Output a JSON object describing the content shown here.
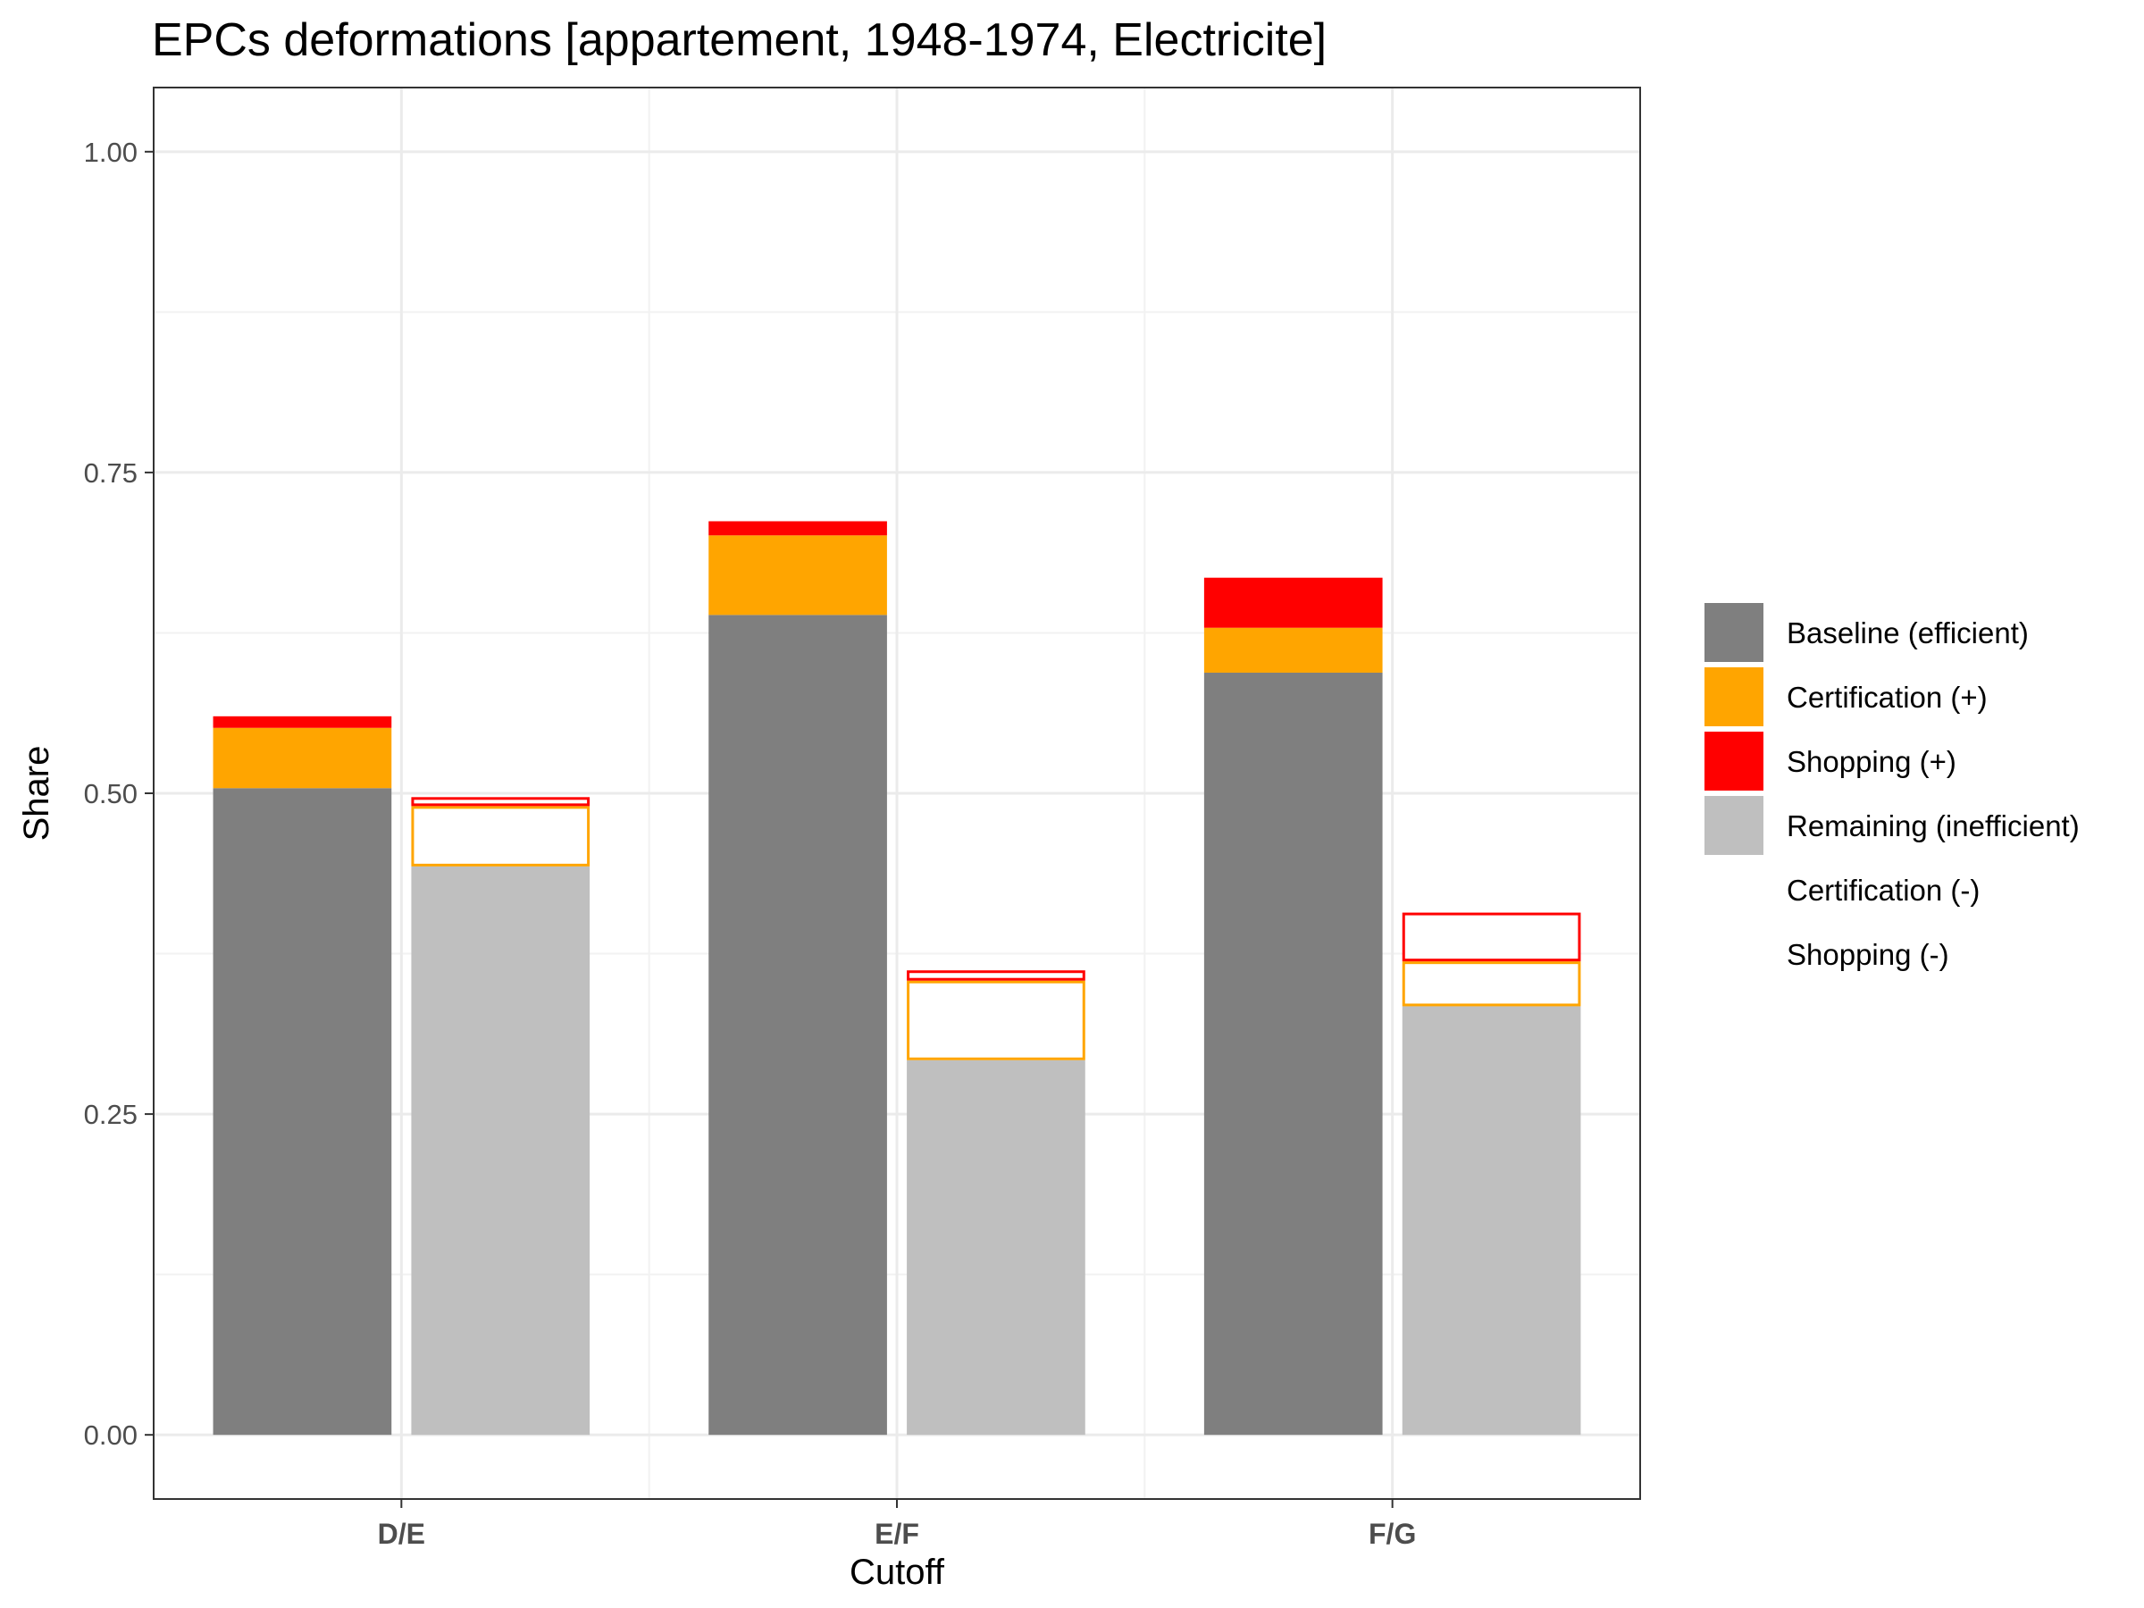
{
  "chart_data": {
    "type": "bar",
    "title": "EPCs deformations [appartement, 1948-1974, Electricite]",
    "xlabel": "Cutoff",
    "ylabel": "Share",
    "ylim": [
      -0.05,
      1.05
    ],
    "yticks": [
      0.0,
      0.25,
      0.5,
      0.75,
      1.0
    ],
    "ytick_labels": [
      "0.00",
      "0.25",
      "0.50",
      "0.75",
      "1.00"
    ],
    "grid": true,
    "legend_position": "right",
    "categories": [
      "D/E",
      "E/F",
      "F/G"
    ],
    "series": [
      {
        "name": "Baseline (efficient)",
        "bar": "left",
        "style": "filled",
        "color": "#7f7f7f",
        "values": [
          0.504,
          0.639,
          0.594
        ]
      },
      {
        "name": "Certification (+)",
        "bar": "left",
        "style": "filled",
        "color": "#ffa500",
        "values": [
          0.047,
          0.062,
          0.035
        ]
      },
      {
        "name": "Shopping (+)",
        "bar": "left",
        "style": "filled",
        "color": "#ff0000",
        "values": [
          0.009,
          0.011,
          0.039
        ]
      },
      {
        "name": "Remaining (inefficient)",
        "bar": "right",
        "style": "filled",
        "color": "#bfbfbf",
        "values": [
          0.443,
          0.292,
          0.334
        ]
      },
      {
        "name": "Certification (-)",
        "bar": "right",
        "style": "outline",
        "color": "#ffa500",
        "values": [
          0.047,
          0.062,
          0.035
        ]
      },
      {
        "name": "Shopping (-)",
        "bar": "right",
        "style": "outline",
        "color": "#ff0000",
        "values": [
          0.007,
          0.008,
          0.038
        ]
      }
    ]
  }
}
